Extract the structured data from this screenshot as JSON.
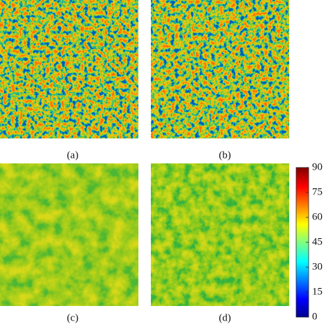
{
  "panels": [
    {
      "label": "(a)"
    },
    {
      "label": "(b)"
    },
    {
      "label": "(c)"
    },
    {
      "label": "(d)"
    }
  ],
  "colorbar": {
    "lim": [
      0,
      90
    ],
    "ticks": [
      0,
      15,
      30,
      45,
      60,
      75,
      90
    ]
  }
}
